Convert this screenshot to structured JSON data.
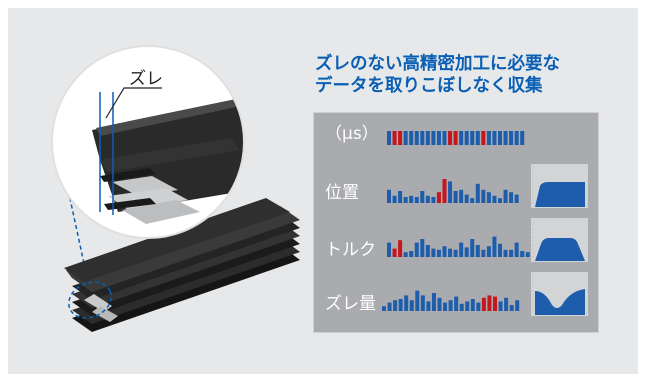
{
  "headline": {
    "line1": "ズレのない高精密加工に必要な",
    "line2": "データを取りこぼしなく収集"
  },
  "illustration": {
    "offset_label": "ズレ"
  },
  "rows": [
    {
      "label": "（µs）",
      "bars": [
        1,
        1,
        1,
        1,
        1,
        1,
        1,
        1,
        1,
        1,
        1,
        1,
        1,
        1,
        1,
        1,
        1,
        1,
        1,
        1,
        1,
        1,
        1,
        1,
        1
      ],
      "red": [
        1,
        2,
        11,
        12,
        17
      ]
    },
    {
      "label": "位置",
      "bars": [
        0.55,
        0.3,
        0.5,
        0.25,
        0.3,
        0.25,
        0.5,
        0.3,
        0.25,
        0.45,
        1.0,
        0.9,
        0.5,
        0.55,
        0.35,
        0.2,
        0.8,
        0.55,
        0.45,
        0.3,
        0.2,
        0.55,
        0.45,
        0.35
      ],
      "red": [
        9,
        10
      ]
    },
    {
      "label": "トルク",
      "bars": [
        0.6,
        0.35,
        0.7,
        0.2,
        0.25,
        0.6,
        0.75,
        0.5,
        0.35,
        0.3,
        0.45,
        0.35,
        0.3,
        0.6,
        0.4,
        0.75,
        0.5,
        0.3,
        0.45,
        0.85,
        0.55,
        0.3,
        0.3,
        0.6,
        0.25,
        0.2
      ],
      "red": [
        1,
        2
      ]
    },
    {
      "label": "ズレ量",
      "bars": [
        0.2,
        0.35,
        0.45,
        0.5,
        0.65,
        0.45,
        0.85,
        0.65,
        0.4,
        0.75,
        0.55,
        0.35,
        0.45,
        0.6,
        0.3,
        0.4,
        0.5,
        0.35,
        0.55,
        0.65,
        0.6,
        0.4,
        0.55,
        0.25,
        0.45
      ],
      "red": [
        18,
        19,
        20
      ]
    }
  ],
  "colors": {
    "blue": "#0a5fb4",
    "bar": "#1d5dab",
    "red": "#c8161d",
    "panel": "#a9abae",
    "thumb_bg": "#d2d4d6"
  }
}
